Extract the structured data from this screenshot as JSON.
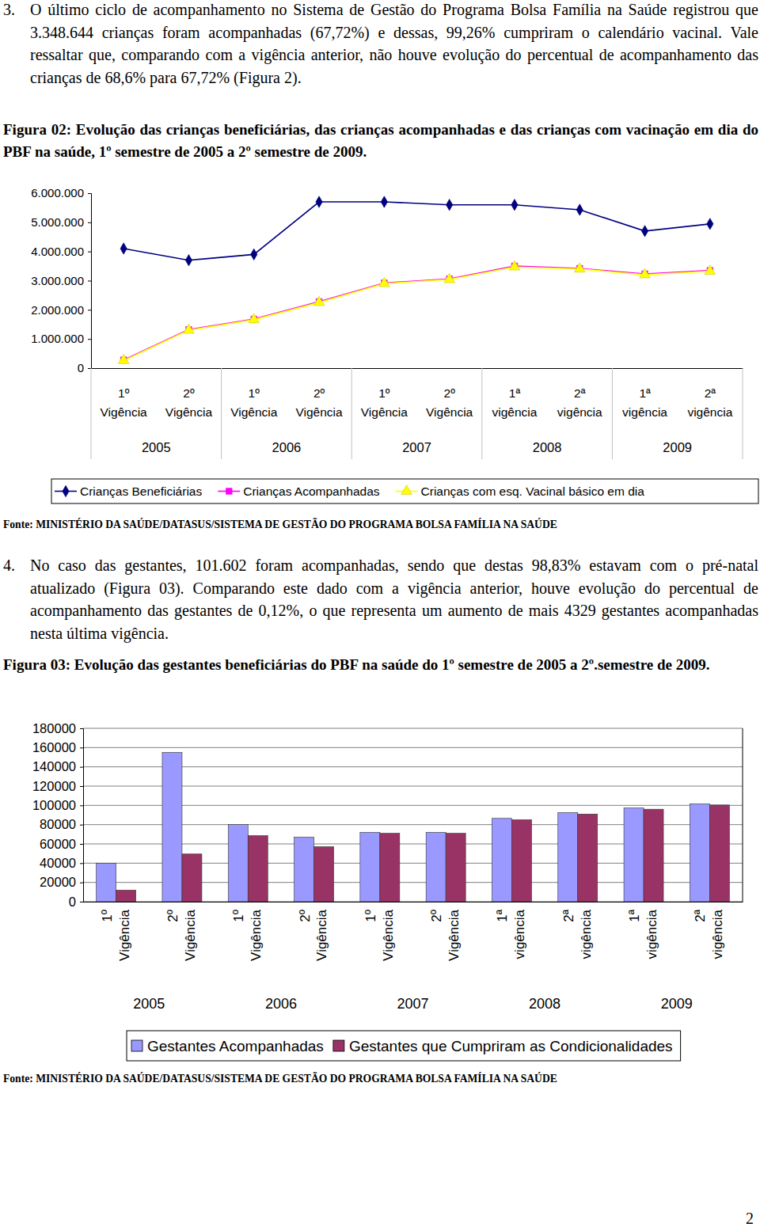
{
  "text": {
    "p3_number": "3.",
    "p3": "O último ciclo de acompanhamento no Sistema de Gestão do Programa Bolsa Família na Saúde registrou que 3.348.644 crianças foram acompanhadas (67,72%) e dessas, 99,26% cumpriram o calendário vacinal. Vale ressaltar que, comparando com a vigência anterior, não houve evolução do percentual de acompanhamento das crianças de 68,6% para 67,72% (Figura 2).",
    "fig2_caption": "Figura 02: Evolução das crianças beneficiárias, das crianças acompanhadas e das crianças com vacinação em dia do PBF na saúde, 1º semestre de 2005 a 2º semestre de 2009.",
    "fig2_source": "Fonte: MINISTÉRIO DA SAÚDE/DATASUS/SISTEMA DE GESTÃO DO PROGRAMA BOLSA FAMÍLIA NA SAÚDE",
    "p4_number": "4.",
    "p4": "No caso das gestantes, 101.602 foram acompanhadas, sendo que destas 98,83% estavam com o pré-natal atualizado (Figura 03). Comparando este dado com a vigência anterior, houve evolução do percentual de acompanhamento das gestantes de 0,12%, o que representa um aumento de mais 4329 gestantes acompanhadas nesta última vigência.",
    "fig3_caption": "Figura 03: Evolução das gestantes beneficiárias do PBF na saúde do 1º semestre de 2005 a 2º.semestre de 2009.",
    "fig3_source": "Fonte: MINISTÉRIO DA SAÚDE/DATASUS/SISTEMA DE GESTÃO DO PROGRAMA BOLSA FAMÍLIA NA SAÚDE",
    "page_number": "2"
  },
  "chart_data": [
    {
      "type": "line",
      "categories": [
        "1º Vigência",
        "2º Vigência",
        "1º Vigência",
        "2º Vigência",
        "1º Vigência",
        "2º Vigência",
        "1ª vigência",
        "2ª vigência",
        "1ª vigência",
        "2ª vigência"
      ],
      "category_groups": [
        "2005",
        "2006",
        "2007",
        "2008",
        "2009"
      ],
      "series": [
        {
          "name": "Crianças Beneficiárias",
          "color": "#000080",
          "marker": "diamond",
          "line_style": "solid",
          "values": [
            4100000,
            3700000,
            3900000,
            5700000,
            5700000,
            5600000,
            5600000,
            5430000,
            4700000,
            4945000
          ]
        },
        {
          "name": "Crianças Acompanhadas",
          "color": "#ff00ff",
          "marker": "square",
          "line_style": "solid",
          "values": [
            280000,
            1320000,
            1680000,
            2280000,
            2920000,
            3060000,
            3500000,
            3420000,
            3230000,
            3348644
          ]
        },
        {
          "name": "Crianças com esq. Vacinal básico em dia",
          "color": "#ffff00",
          "marker": "triangle",
          "line_style": "solid",
          "values": [
            260000,
            1300000,
            1660000,
            2250000,
            2900000,
            3040000,
            3470000,
            3400000,
            3200000,
            3324000
          ]
        }
      ],
      "ylim": [
        0,
        6000000
      ],
      "yticks": [
        0,
        {
          "value": 1000000,
          "label": "1.000.000"
        },
        {
          "value": 2000000,
          "label": "2.000.000"
        },
        {
          "value": 3000000,
          "label": "3.000.000"
        },
        {
          "value": 4000000,
          "label": "4.000.000"
        },
        {
          "value": 5000000,
          "label": "5.000.000"
        },
        {
          "value": 6000000,
          "label": "6.000.000"
        }
      ],
      "grid": false,
      "legend": "bottom"
    },
    {
      "type": "bar",
      "categories": [
        "1º Vigência",
        "2º Vigência",
        "1º Vigência",
        "2º Vigência",
        "1º Vigência",
        "2º Vigência",
        "1ª vigência",
        "2ª vigência",
        "1ª vigência",
        "2ª vigência"
      ],
      "category_groups": [
        "2005",
        "2006",
        "2007",
        "2008",
        "2009"
      ],
      "series": [
        {
          "name": "Gestantes Acompanhadas",
          "color": "#9999ff",
          "values": [
            40000,
            155000,
            80000,
            67000,
            72000,
            72000,
            86500,
            92500,
            97273,
            101602
          ]
        },
        {
          "name": "Gestantes que Cumpriram as Condicionalidades",
          "color": "#993366",
          "values": [
            12000,
            49500,
            68500,
            57000,
            71000,
            71000,
            85000,
            91000,
            96000,
            100413
          ]
        }
      ],
      "ylim": [
        0,
        180000
      ],
      "yticks": [
        0,
        20000,
        40000,
        60000,
        80000,
        100000,
        120000,
        140000,
        160000,
        180000
      ],
      "grid": true,
      "legend": "bottom"
    }
  ]
}
